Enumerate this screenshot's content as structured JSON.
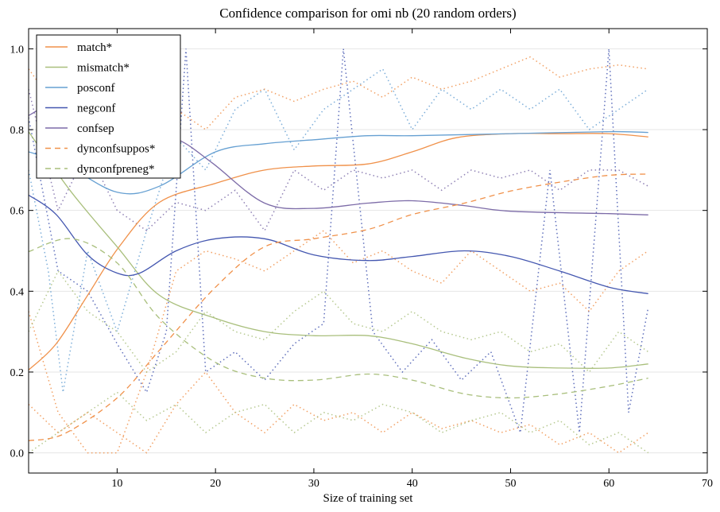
{
  "chart_data": {
    "type": "line",
    "title": "Confidence comparison for omi nb (20 random orders)",
    "xlabel": "Size of training set",
    "ylabel": "",
    "xlim": [
      1,
      70
    ],
    "ylim": [
      -0.05,
      1.05
    ],
    "xticks": [
      10,
      20,
      30,
      40,
      50,
      60,
      70
    ],
    "yticks": [
      0.0,
      0.2,
      0.4,
      0.6,
      0.8,
      1.0
    ],
    "ytick_labels": [
      "0.0",
      "0.2",
      "0.4",
      "0.6",
      "0.8",
      "1.0"
    ],
    "grid": "horizontal",
    "legend_placement": "top-left",
    "series": [
      {
        "name": "match*",
        "color": "#f0914a",
        "style": "solid",
        "x": [
          1,
          3.8,
          7,
          10.2,
          14.3,
          20,
          25,
          30,
          35.5,
          40,
          44.5,
          50,
          55,
          60,
          64
        ],
        "y": [
          0.205,
          0.27,
          0.39,
          0.51,
          0.62,
          0.667,
          0.7,
          0.71,
          0.715,
          0.745,
          0.78,
          0.79,
          0.79,
          0.79,
          0.782
        ]
      },
      {
        "name": "mismatch*",
        "color": "#a9bf7c",
        "style": "solid",
        "x": [
          1,
          5.2,
          10,
          14.3,
          20,
          25,
          30,
          35.5,
          40,
          45.3,
          50,
          55,
          60,
          64
        ],
        "y": [
          0.795,
          0.65,
          0.51,
          0.39,
          0.333,
          0.3,
          0.29,
          0.29,
          0.27,
          0.235,
          0.215,
          0.21,
          0.21,
          0.22
        ]
      },
      {
        "name": "posconf",
        "color": "#66a0d2",
        "style": "solid",
        "x": [
          1,
          4.6,
          10,
          14.3,
          20,
          25,
          30,
          35.5,
          40,
          50,
          60,
          64
        ],
        "y": [
          0.745,
          0.715,
          0.645,
          0.66,
          0.745,
          0.765,
          0.775,
          0.785,
          0.785,
          0.79,
          0.795,
          0.793
        ]
      },
      {
        "name": "negconf",
        "color": "#4457b0",
        "style": "solid",
        "x": [
          1,
          3.8,
          7,
          10,
          12.3,
          16,
          20,
          25,
          30,
          35.5,
          40,
          45.3,
          50,
          55,
          60,
          64
        ],
        "y": [
          0.638,
          0.59,
          0.49,
          0.445,
          0.445,
          0.5,
          0.53,
          0.53,
          0.49,
          0.476,
          0.486,
          0.5,
          0.486,
          0.45,
          0.41,
          0.394
        ]
      },
      {
        "name": "confsep",
        "color": "#7d6ca8",
        "style": "solid",
        "x": [
          1,
          3.8,
          8.7,
          12.7,
          16.3,
          19.7,
          25,
          30,
          35.5,
          40,
          45.3,
          50,
          60,
          64
        ],
        "y": [
          0.835,
          0.864,
          0.845,
          0.795,
          0.774,
          0.717,
          0.618,
          0.605,
          0.618,
          0.624,
          0.612,
          0.598,
          0.592,
          0.589
        ]
      },
      {
        "name": "dynconfsuppos*",
        "color": "#f0914a",
        "style": "dashed",
        "x": [
          1,
          4.6,
          10,
          14.3,
          20,
          25,
          30,
          35.5,
          40,
          45.3,
          50,
          55,
          60,
          64
        ],
        "y": [
          0.03,
          0.047,
          0.136,
          0.254,
          0.41,
          0.51,
          0.53,
          0.553,
          0.59,
          0.618,
          0.648,
          0.67,
          0.687,
          0.69
        ]
      },
      {
        "name": "dynconfpreneg*",
        "color": "#a9bf7c",
        "style": "dashed",
        "x": [
          1,
          5.4,
          10,
          14.3,
          20,
          25,
          30,
          35.5,
          40,
          45.3,
          50,
          55,
          60,
          64
        ],
        "y": [
          0.498,
          0.53,
          0.47,
          0.333,
          0.224,
          0.185,
          0.18,
          0.195,
          0.18,
          0.146,
          0.136,
          0.146,
          0.165,
          0.185
        ]
      },
      {
        "color": "#4457b0",
        "style": "dotted",
        "x": [
          1,
          4,
          7,
          10,
          13,
          15,
          17,
          19,
          22,
          25,
          28,
          31,
          33,
          36,
          39,
          42,
          45,
          48,
          51,
          54,
          57,
          60,
          62,
          64
        ],
        "y": [
          0.83,
          0.45,
          0.4,
          0.27,
          0.15,
          0.3,
          1.0,
          0.2,
          0.25,
          0.18,
          0.27,
          0.32,
          1.0,
          0.3,
          0.2,
          0.28,
          0.18,
          0.25,
          0.05,
          0.7,
          0.05,
          1.0,
          0.1,
          0.36
        ]
      },
      {
        "color": "#66a0d2",
        "style": "dotted",
        "x": [
          1,
          3,
          4.5,
          7,
          10,
          13,
          16,
          19,
          22,
          25,
          28,
          31,
          34,
          37,
          40,
          43,
          46,
          49,
          52,
          55,
          58,
          61,
          64
        ],
        "y": [
          0.7,
          0.45,
          0.15,
          0.5,
          0.3,
          0.55,
          0.78,
          0.7,
          0.85,
          0.9,
          0.75,
          0.85,
          0.9,
          0.95,
          0.8,
          0.9,
          0.85,
          0.9,
          0.85,
          0.9,
          0.8,
          0.85,
          0.9
        ]
      },
      {
        "color": "#7d6ca8",
        "style": "dotted",
        "x": [
          1,
          4,
          7,
          10,
          13,
          16,
          19,
          22,
          25,
          28,
          31,
          34,
          37,
          40,
          43,
          46,
          49,
          52,
          55,
          58,
          61,
          64
        ],
        "y": [
          0.9,
          0.6,
          0.75,
          0.6,
          0.55,
          0.62,
          0.6,
          0.65,
          0.55,
          0.7,
          0.65,
          0.7,
          0.68,
          0.7,
          0.65,
          0.7,
          0.68,
          0.7,
          0.65,
          0.7,
          0.7,
          0.66
        ]
      },
      {
        "color": "#f0914a",
        "style": "dotted",
        "x": [
          1,
          4,
          7,
          10,
          13,
          16,
          19,
          22,
          25,
          28,
          31,
          34,
          37,
          40,
          43,
          46,
          49,
          52,
          55,
          58,
          61,
          64
        ],
        "y": [
          0.35,
          0.1,
          0.0,
          0.0,
          0.2,
          0.45,
          0.5,
          0.48,
          0.45,
          0.5,
          0.55,
          0.47,
          0.5,
          0.45,
          0.42,
          0.5,
          0.45,
          0.4,
          0.42,
          0.35,
          0.45,
          0.5
        ]
      },
      {
        "color": "#f0914a",
        "style": "dotted",
        "x": [
          1,
          4,
          7,
          10,
          13,
          16,
          19,
          22,
          25,
          28,
          31,
          34,
          37,
          40,
          43,
          46,
          49,
          52,
          55,
          58,
          61,
          64
        ],
        "y": [
          0.95,
          0.85,
          0.9,
          0.75,
          0.7,
          0.85,
          0.8,
          0.88,
          0.9,
          0.87,
          0.9,
          0.92,
          0.88,
          0.93,
          0.9,
          0.92,
          0.95,
          0.98,
          0.93,
          0.95,
          0.96,
          0.95
        ]
      },
      {
        "color": "#f0914a",
        "style": "dotted",
        "x": [
          1,
          4,
          7,
          10,
          13,
          16,
          19,
          22,
          25,
          28,
          31,
          34,
          37,
          40,
          43,
          46,
          49,
          52,
          55,
          58,
          61,
          64
        ],
        "y": [
          0.12,
          0.05,
          0.1,
          0.05,
          0.0,
          0.12,
          0.2,
          0.1,
          0.05,
          0.12,
          0.08,
          0.1,
          0.05,
          0.1,
          0.06,
          0.08,
          0.05,
          0.07,
          0.02,
          0.05,
          0.0,
          0.05
        ]
      },
      {
        "color": "#a9bf7c",
        "style": "dotted",
        "x": [
          1,
          4,
          7,
          10,
          13,
          16,
          19,
          22,
          25,
          28,
          31,
          34,
          37,
          40,
          43,
          46,
          49,
          52,
          55,
          58,
          61,
          64
        ],
        "y": [
          0.3,
          0.45,
          0.35,
          0.3,
          0.2,
          0.25,
          0.35,
          0.3,
          0.28,
          0.35,
          0.4,
          0.32,
          0.3,
          0.35,
          0.3,
          0.28,
          0.3,
          0.25,
          0.27,
          0.2,
          0.3,
          0.25
        ]
      },
      {
        "color": "#a9bf7c",
        "style": "dotted",
        "x": [
          1,
          4,
          7,
          10,
          13,
          16,
          19,
          22,
          25,
          28,
          31,
          34,
          37,
          40,
          43,
          46,
          49,
          52,
          55,
          58,
          61,
          64
        ],
        "y": [
          0.0,
          0.05,
          0.1,
          0.15,
          0.08,
          0.12,
          0.05,
          0.1,
          0.12,
          0.05,
          0.1,
          0.08,
          0.12,
          0.1,
          0.05,
          0.08,
          0.1,
          0.05,
          0.08,
          0.02,
          0.05,
          0.0
        ]
      }
    ]
  }
}
